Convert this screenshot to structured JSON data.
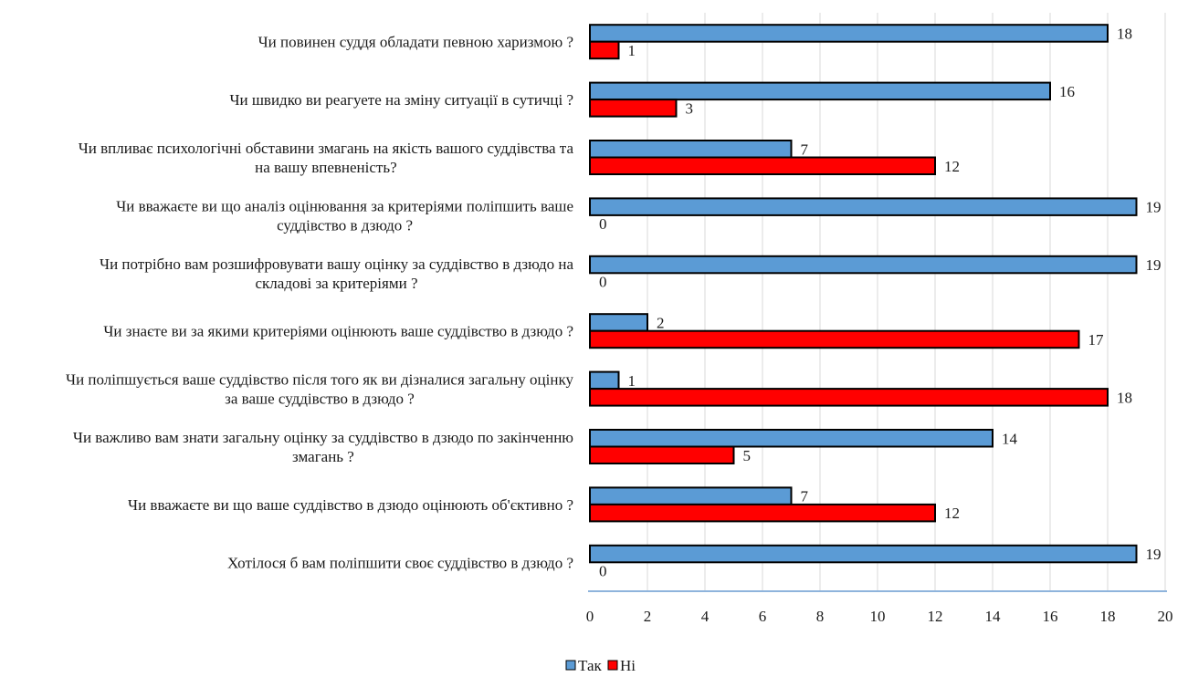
{
  "chart_data": {
    "type": "bar",
    "orientation": "horizontal",
    "categories": [
      [
        "Чи повинен суддя обладати певною харизмою ?"
      ],
      [
        "Чи швидко ви реагуете на зміну ситуації в сутичці ?"
      ],
      [
        "Чи впливає психологічні обставини змагань  на якість вашого суддівства та",
        "на вашу впевненість?"
      ],
      [
        "Чи вважаєте ви що аналіз оцінювання за критеріями поліпшить ваше",
        "суддівство в дзюдо ?"
      ],
      [
        "Чи потрібно вам розшифровувати вашу оцінку за суддівство в дзюдо на",
        "складові за критеріями ?"
      ],
      [
        "Чи знаєте ви за якими критеріями оцінюють ваше суддівство в дзюдо ?"
      ],
      [
        "Чи поліпшується ваше суддівство після того як ви дізналися загальну оцінку",
        "за ваше суддівство в дзюдо ?"
      ],
      [
        "Чи важливо вам знати загальну оцінку за суддівство в дзюдо по закінченню",
        "змагань ?"
      ],
      [
        "Чи вважаєте ви що ваше суддівство в дзюдо оцінюють об'єктивно ?"
      ],
      [
        "Хотілося б вам поліпшити своє суддівство в дзюдо ?"
      ]
    ],
    "series": [
      {
        "name": "Так",
        "color": "#5b9bd5",
        "values": [
          18,
          16,
          7,
          19,
          19,
          2,
          1,
          14,
          7,
          19
        ]
      },
      {
        "name": "Ні",
        "color": "#ff0000",
        "values": [
          1,
          3,
          12,
          0,
          0,
          17,
          18,
          5,
          12,
          0
        ]
      }
    ],
    "xlim": [
      0,
      20
    ],
    "xticks": [
      "0",
      "2",
      "4",
      "6",
      "8",
      "10",
      "12",
      "14",
      "16",
      "18",
      "20"
    ],
    "grid": true,
    "legend_position": "bottom"
  }
}
